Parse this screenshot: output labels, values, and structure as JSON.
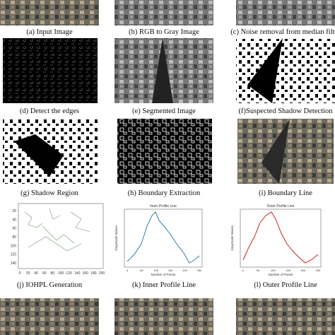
{
  "panels": [
    {
      "caption": "(a) Input Image"
    },
    {
      "caption": "(b) RGB to Gray Image"
    },
    {
      "caption": "(c) Noise removal from median filter"
    },
    {
      "caption": "(d) Detect the edges"
    },
    {
      "caption": "(e) Segmented Image"
    },
    {
      "caption": "(f)Suspected Shadow Detection"
    },
    {
      "caption": "(g) Shadow Region"
    },
    {
      "caption": "(h) Boundary Extraction"
    },
    {
      "caption": "(i) Boundary Line"
    },
    {
      "caption": "(j) IOHPL Generation",
      "xticks": [
        "0",
        "20",
        "40",
        "60",
        "80",
        "100",
        "120",
        "140",
        "160",
        "180",
        "200"
      ],
      "yticks": [
        "20",
        "40",
        "60",
        "80",
        "100",
        "120",
        "140"
      ]
    },
    {
      "caption": "(k) Inner Profile Line",
      "title": "Inner Profile Line",
      "xlabel": "Number of Points",
      "ylabel": "GrayScale Values",
      "xticks": [
        "0",
        "50",
        "100",
        "150",
        "200",
        "250"
      ]
    },
    {
      "caption": "(l) Outer Profile Line",
      "title": "Outer Profile Line",
      "xlabel": "Number of Points",
      "ylabel": "GrayScale Values",
      "xticks": [
        "0",
        "50",
        "100",
        "150",
        "200",
        "250"
      ]
    }
  ]
}
